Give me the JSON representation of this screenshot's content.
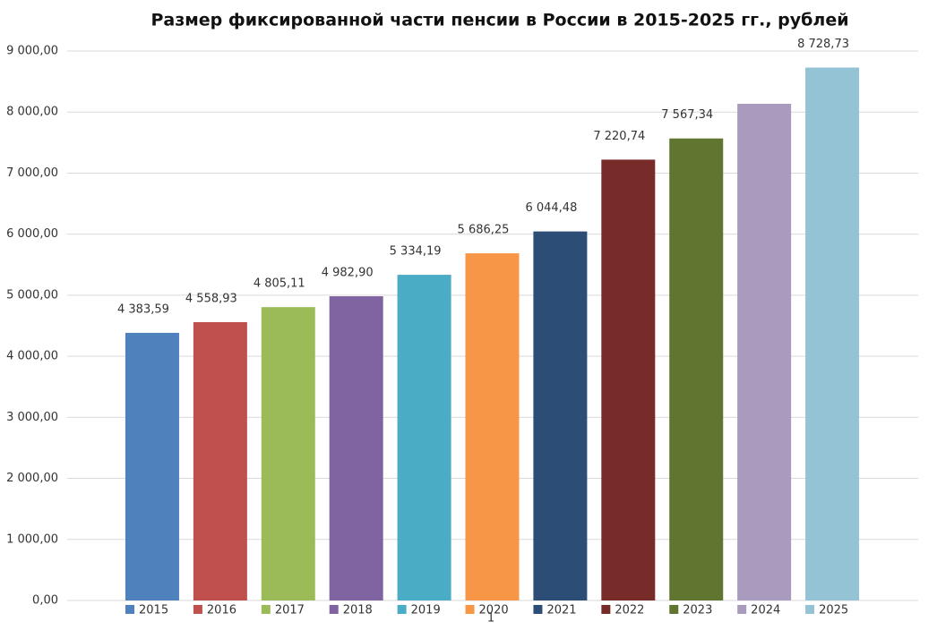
{
  "chart_data": {
    "type": "bar",
    "title": "Размер фиксированной части пенсии в России в 2015-2025 гг., рублей",
    "categories": [
      "2015",
      "2016",
      "2017",
      "2018",
      "2019",
      "2020",
      "2021",
      "2022",
      "2023",
      "2024",
      "2025"
    ],
    "values": [
      4383.59,
      4558.93,
      4805.11,
      4982.9,
      5334.19,
      5686.25,
      6044.48,
      7220.74,
      7567.34,
      8135,
      8728.73
    ],
    "value_labels": [
      "4 383,59",
      "4 558,93",
      "4 805,11",
      "4 982,90",
      "5 334,19",
      "5 686,25",
      "6 044,48",
      "7 220,74",
      "7 567,34",
      null,
      "8 728,73"
    ],
    "colors": [
      "#4f81bd",
      "#c0504d",
      "#9bbb59",
      "#8064a2",
      "#4bacc6",
      "#f79646",
      "#2c4d75",
      "#772c2a",
      "#5f7530",
      "#a99bbd",
      "#93c3d5"
    ],
    "ylim": [
      0,
      9000
    ],
    "yticks": [
      {
        "value": 0,
        "label": "0,00"
      },
      {
        "value": 1000,
        "label": "1 000,00"
      },
      {
        "value": 2000,
        "label": "2 000,00"
      },
      {
        "value": 3000,
        "label": "3 000,00"
      },
      {
        "value": 4000,
        "label": "4 000,00"
      },
      {
        "value": 5000,
        "label": "5 000,00"
      },
      {
        "value": 6000,
        "label": "6 000,00"
      },
      {
        "value": 7000,
        "label": "7 000,00"
      },
      {
        "value": 8000,
        "label": "8 000,00"
      },
      {
        "value": 9000,
        "label": "9 000,00"
      }
    ],
    "grid": true,
    "legend": "bottom"
  },
  "page_number": "1"
}
